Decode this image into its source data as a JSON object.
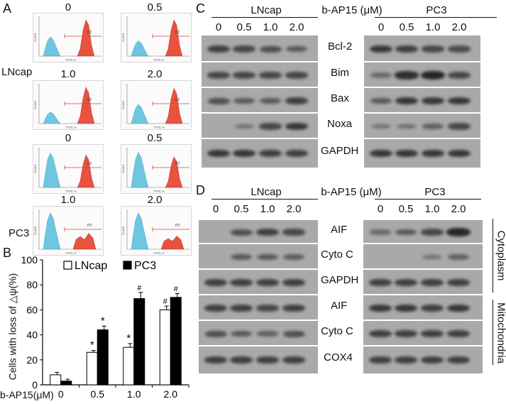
{
  "panels": {
    "a": "A",
    "b": "B",
    "c": "C",
    "d": "D"
  },
  "panel_a": {
    "cells": [
      "LNcap",
      "PC3"
    ],
    "doses": [
      "0",
      "0.5",
      "1.0",
      "2.0"
    ],
    "gate_label": "P2",
    "axis_x": "FITC-A",
    "axis_y": "Count",
    "colors": {
      "low": "#6ec6e0",
      "high": "#e8523f"
    }
  },
  "panel_b": {
    "ylabel": "Cells with loss of △ψ(%)",
    "xlabel": "b-AP15(μM)",
    "legend": [
      "LNcap",
      "PC3"
    ]
  },
  "chart_data": {
    "type": "bar",
    "categories": [
      "0",
      "0.5",
      "1.0",
      "2.0"
    ],
    "series": [
      {
        "name": "LNcap",
        "values": [
          8,
          26,
          30,
          60
        ],
        "errors": [
          2,
          1.5,
          3,
          3
        ],
        "markers": [
          "",
          "*",
          "*",
          "#"
        ],
        "color": "#ffffff"
      },
      {
        "name": "PC3",
        "values": [
          3,
          44,
          69,
          70
        ],
        "errors": [
          1.5,
          3,
          5,
          3
        ],
        "markers": [
          "",
          "*",
          "#",
          "#"
        ],
        "color": "#000000"
      }
    ],
    "ylim": [
      0,
      100
    ],
    "yticks": [
      "0",
      "20",
      "40",
      "60",
      "80",
      "100"
    ],
    "xlabel": "b-AP15(μM)",
    "ylabel": "Cells with loss of △ψ(%)"
  },
  "panel_c": {
    "left_title": "LNcap",
    "center_title": "b-AP15 (μM)",
    "right_title": "PC3",
    "doses": [
      "0",
      "0.5",
      "1.0",
      "2.0"
    ],
    "proteins": [
      "Bcl-2",
      "Bim",
      "Bax",
      "Noxa",
      "GAPDH"
    ]
  },
  "panel_d": {
    "left_title": "LNcap",
    "center_title": "b-AP15 (μM)",
    "right_title": "PC3",
    "doses": [
      "0",
      "0.5",
      "1.0",
      "2.0"
    ],
    "proteins": [
      "AIF",
      "Cyto C",
      "GAPDH",
      "AIF",
      "Cyto C",
      "COX4"
    ],
    "fractions": [
      "Cytoplasm",
      "Mitochondria"
    ]
  }
}
